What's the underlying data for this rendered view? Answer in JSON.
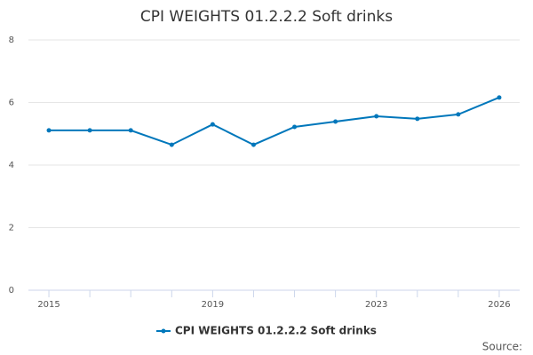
{
  "chart_data": {
    "type": "line",
    "title": "CPI WEIGHTS 01.2.2.2 Soft drinks",
    "x": [
      2015,
      2016,
      2017,
      2018,
      2019,
      2020,
      2021,
      2022,
      2023,
      2024,
      2025,
      2026
    ],
    "series": [
      {
        "name": "CPI WEIGHTS 01.2.2.2 Soft drinks",
        "color": "#0077bb",
        "values": [
          5.11,
          5.11,
          5.11,
          4.65,
          5.3,
          4.65,
          5.22,
          5.39,
          5.56,
          5.48,
          5.62,
          6.16
        ]
      }
    ],
    "xlim": [
      2014.5,
      2026.5
    ],
    "xticks": [
      2015,
      2019,
      2023,
      2026
    ],
    "ylim": [
      0,
      8
    ],
    "yticks": [
      0,
      2,
      4,
      6,
      8
    ],
    "grid": true,
    "legend": "bottom",
    "source": "Source:"
  }
}
